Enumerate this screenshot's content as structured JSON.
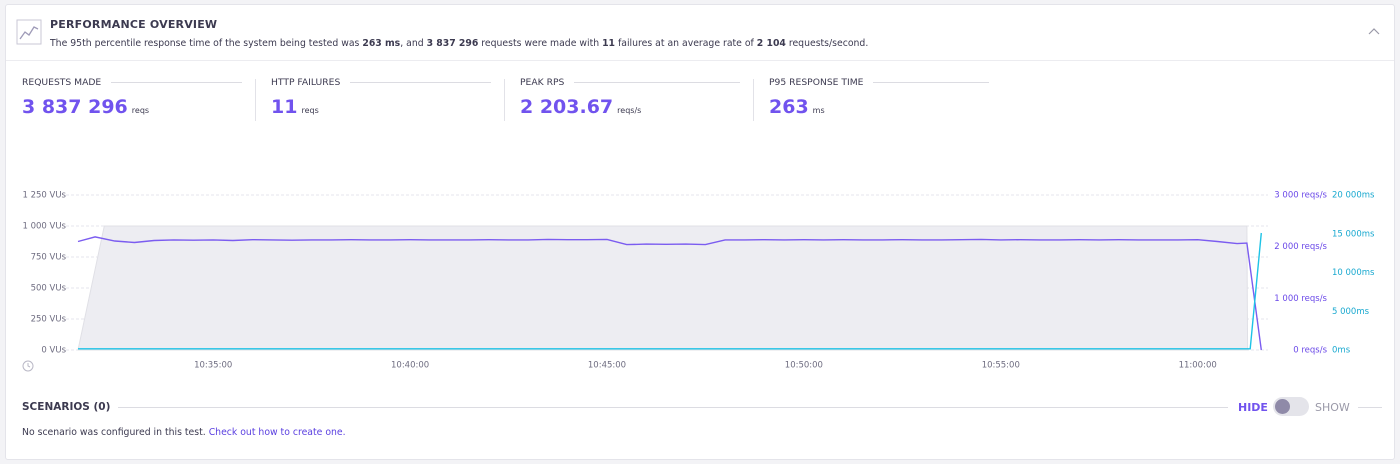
{
  "header": {
    "title": "PERFORMANCE OVERVIEW",
    "summary": [
      {
        "text": "The 95th percentile response time of the system being tested was ",
        "bold": false
      },
      {
        "text": "263 ms",
        "bold": true
      },
      {
        "text": ", and ",
        "bold": false
      },
      {
        "text": "3 837 296",
        "bold": true
      },
      {
        "text": " requests were made with ",
        "bold": false
      },
      {
        "text": "11",
        "bold": true
      },
      {
        "text": " failures at an average rate of ",
        "bold": false
      },
      {
        "text": "2 104",
        "bold": true
      },
      {
        "text": " requests/second.",
        "bold": false
      }
    ]
  },
  "metrics": [
    {
      "label": "REQUESTS MADE",
      "value": "3 837 296",
      "unit": "reqs"
    },
    {
      "label": "HTTP FAILURES",
      "value": "11",
      "unit": "reqs"
    },
    {
      "label": "PEAK RPS",
      "value": "2 203.67",
      "unit": "reqs/s"
    },
    {
      "label": "P95 RESPONSE TIME",
      "value": "263",
      "unit": "ms"
    }
  ],
  "chart": {
    "type": "line",
    "xlim": [
      "10:31:34",
      "11:01:38"
    ],
    "xticks": [
      "10:35:00",
      "10:40:00",
      "10:45:00",
      "10:50:00",
      "10:55:00",
      "11:00:00"
    ],
    "ylim": [
      0,
      1250
    ],
    "yticks": [
      {
        "value": 0,
        "label": "0 VUs"
      },
      {
        "value": 250,
        "label": "250 VUs"
      },
      {
        "value": 500,
        "label": "500 VUs"
      },
      {
        "value": 750,
        "label": "750 VUs"
      },
      {
        "value": 1000,
        "label": "1 000 VUs"
      },
      {
        "value": 1250,
        "label": "1 250 VUs"
      }
    ],
    "y2lim": [
      0,
      3000
    ],
    "y2ticks": [
      {
        "value": 0,
        "label": "0 reqs/s"
      },
      {
        "value": 1000,
        "label": "1 000 reqs/s"
      },
      {
        "value": 2000,
        "label": "2 000 reqs/s"
      },
      {
        "value": 3000,
        "label": "3 000 reqs/s"
      }
    ],
    "y3lim": [
      0,
      20000
    ],
    "y3ticks": [
      {
        "value": 0,
        "label": "0ms"
      },
      {
        "value": 5000,
        "label": "5 000ms"
      },
      {
        "value": 10000,
        "label": "10 000ms"
      },
      {
        "value": 15000,
        "label": "15 000ms"
      },
      {
        "value": 20000,
        "label": "20 000ms"
      }
    ],
    "grid": true,
    "series": [
      {
        "kind": "area",
        "axis": "y",
        "color": "#ededf2",
        "x": [
          "10:31:34",
          "10:32:14",
          "11:01:15",
          "11:01:16"
        ],
        "values": [
          0,
          1000,
          1000,
          0
        ]
      },
      {
        "kind": "line",
        "axis": "y2",
        "color": "#7b5cf0",
        "x": [
          "10:31:34",
          "10:32:00",
          "10:32:30",
          "10:33:00",
          "10:33:30",
          "10:34:00",
          "10:34:30",
          "10:35:00",
          "10:35:30",
          "10:36:00",
          "10:36:30",
          "10:37:00",
          "10:37:30",
          "10:38:00",
          "10:38:30",
          "10:39:00",
          "10:39:30",
          "10:40:00",
          "10:40:30",
          "10:41:00",
          "10:41:30",
          "10:42:00",
          "10:42:30",
          "10:43:00",
          "10:43:30",
          "10:44:00",
          "10:44:30",
          "10:45:00",
          "10:45:30",
          "10:46:00",
          "10:46:30",
          "10:47:00",
          "10:47:30",
          "10:48:00",
          "10:48:30",
          "10:49:00",
          "10:49:30",
          "10:50:00",
          "10:50:30",
          "10:51:00",
          "10:51:30",
          "10:52:00",
          "10:52:30",
          "10:53:00",
          "10:53:30",
          "10:54:00",
          "10:54:30",
          "10:55:00",
          "10:55:30",
          "10:56:00",
          "10:56:30",
          "10:57:00",
          "10:57:30",
          "10:58:00",
          "10:58:30",
          "10:59:00",
          "10:59:30",
          "11:00:00",
          "11:00:30",
          "11:01:00",
          "11:01:15",
          "11:01:37"
        ],
        "values": [
          2100,
          2190,
          2110,
          2080,
          2120,
          2130,
          2125,
          2130,
          2120,
          2135,
          2130,
          2125,
          2130,
          2130,
          2135,
          2130,
          2130,
          2135,
          2130,
          2130,
          2130,
          2135,
          2130,
          2130,
          2140,
          2135,
          2135,
          2140,
          2040,
          2050,
          2045,
          2050,
          2040,
          2130,
          2130,
          2135,
          2130,
          2135,
          2130,
          2135,
          2130,
          2130,
          2135,
          2130,
          2130,
          2135,
          2140,
          2130,
          2135,
          2130,
          2130,
          2135,
          2130,
          2135,
          2130,
          2130,
          2130,
          2135,
          2100,
          2060,
          2070,
          0
        ]
      },
      {
        "kind": "line",
        "axis": "y3",
        "color": "#1ec3e6",
        "x": [
          "10:31:34",
          "11:01:20",
          "11:01:37"
        ],
        "values": [
          150,
          150,
          15100
        ]
      }
    ]
  },
  "scenarios": {
    "title": "SCENARIOS (0)",
    "hide": "HIDE",
    "show": "SHOW",
    "message": "No scenario was configured in this test.",
    "link": "Check out how to create one."
  }
}
